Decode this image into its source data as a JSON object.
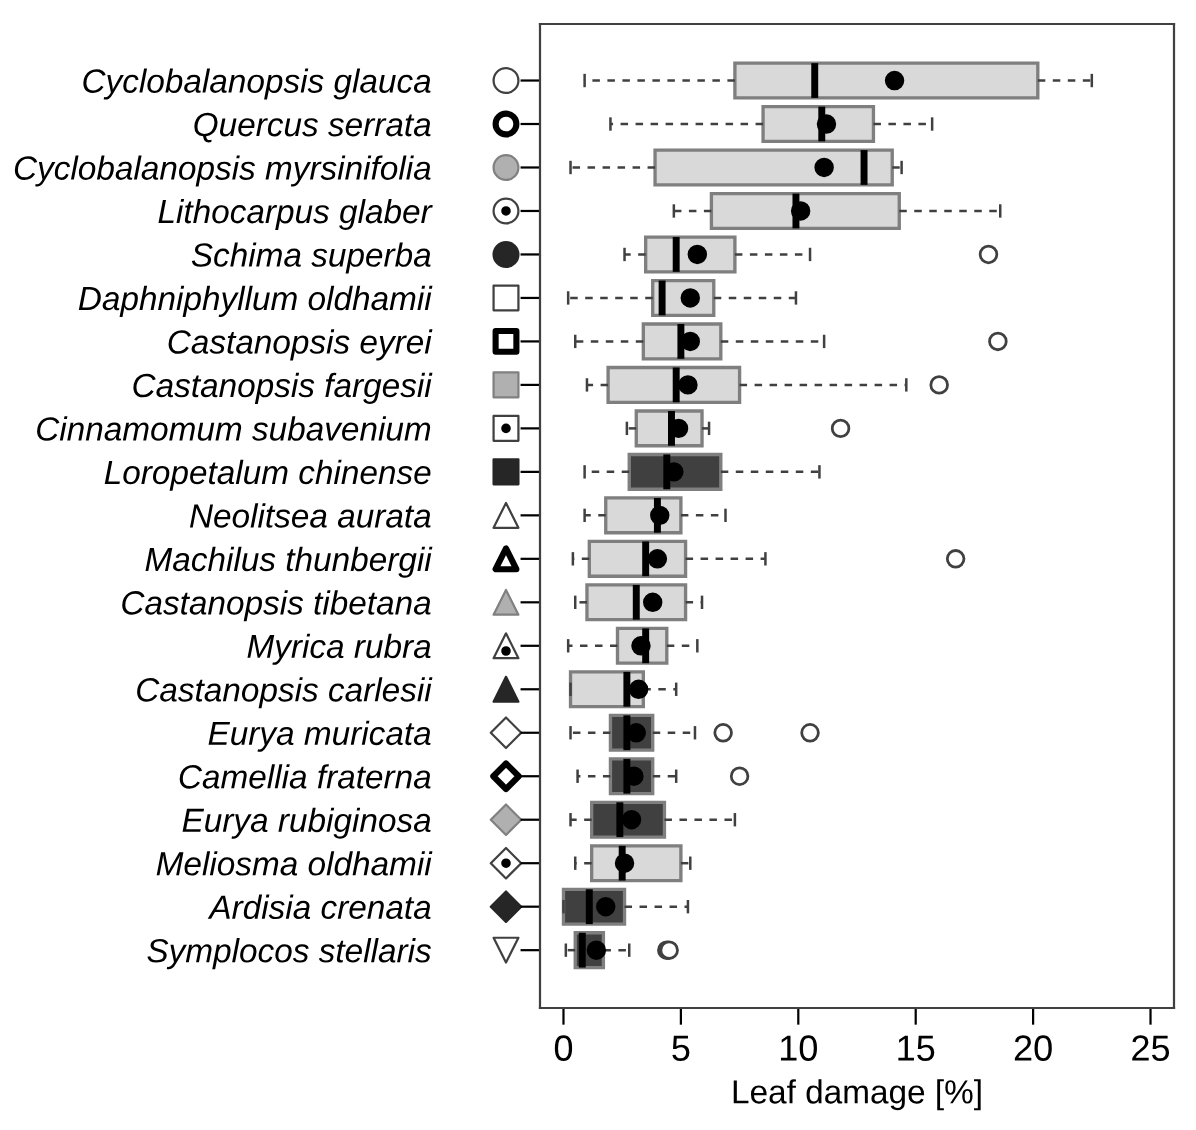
{
  "chart_data": {
    "type": "box",
    "orientation": "horizontal",
    "xlabel": "Leaf damage [%]",
    "categories": [
      "Cyclobalanopsis glauca",
      "Quercus serrata",
      "Cyclobalanopsis myrsinifolia",
      "Lithocarpus glaber",
      "Schima superba",
      "Daphniphyllum oldhamii",
      "Castanopsis eyrei",
      "Castanopsis fargesii",
      "Cinnamomum subavenium",
      "Loropetalum chinense",
      "Neolitsea aurata",
      "Machilus thunbergii",
      "Castanopsis tibetana",
      "Myrica rubra",
      "Castanopsis carlesii",
      "Eurya muricata",
      "Camellia fraterna",
      "Eurya rubiginosa",
      "Meliosma oldhamii",
      "Ardisia crenata",
      "Symplocos stellaris"
    ],
    "boxes": [
      {
        "low": 0.9,
        "q1": 7.3,
        "median": 10.7,
        "q3": 20.2,
        "high": 22.5,
        "mean": 14.1
      },
      {
        "low": 2.0,
        "q1": 8.5,
        "median": 11.0,
        "q3": 13.2,
        "high": 15.7,
        "mean": 11.2
      },
      {
        "low": 0.3,
        "q1": 3.9,
        "median": 12.8,
        "q3": 14.0,
        "high": 14.4,
        "mean": 11.1
      },
      {
        "low": 4.7,
        "q1": 6.3,
        "median": 9.9,
        "q3": 14.3,
        "high": 18.6,
        "mean": 10.1
      },
      {
        "low": 2.6,
        "q1": 3.5,
        "median": 4.8,
        "q3": 7.3,
        "high": 10.5,
        "mean": 5.7,
        "outliers": [
          18.1
        ]
      },
      {
        "low": 0.2,
        "q1": 3.8,
        "median": 4.2,
        "q3": 6.4,
        "high": 9.9,
        "mean": 5.4
      },
      {
        "low": 0.5,
        "q1": 3.4,
        "median": 5.0,
        "q3": 6.7,
        "high": 11.1,
        "mean": 5.4,
        "outliers": [
          18.5
        ]
      },
      {
        "low": 1.0,
        "q1": 1.9,
        "median": 4.8,
        "q3": 7.5,
        "high": 14.6,
        "mean": 5.3,
        "outliers": [
          16.0
        ]
      },
      {
        "low": 2.7,
        "q1": 3.1,
        "median": 4.6,
        "q3": 5.9,
        "high": 6.2,
        "mean": 4.9,
        "outliers": [
          11.8
        ]
      },
      {
        "low": 0.9,
        "q1": 2.8,
        "median": 4.4,
        "q3": 6.7,
        "high": 10.9,
        "mean": 4.7
      },
      {
        "low": 0.9,
        "q1": 1.8,
        "median": 4.0,
        "q3": 5.0,
        "high": 6.9,
        "mean": 4.1
      },
      {
        "low": 0.4,
        "q1": 1.1,
        "median": 3.5,
        "q3": 5.2,
        "high": 8.6,
        "mean": 4.0,
        "outliers": [
          16.7
        ]
      },
      {
        "low": 0.5,
        "q1": 1.0,
        "median": 3.1,
        "q3": 5.2,
        "high": 5.9,
        "mean": 3.8
      },
      {
        "low": 0.2,
        "q1": 2.3,
        "median": 3.5,
        "q3": 4.4,
        "high": 5.7,
        "mean": 3.3
      },
      {
        "low": 0.3,
        "q1": 0.3,
        "median": 2.7,
        "q3": 3.4,
        "high": 4.8,
        "mean": 3.2
      },
      {
        "low": 0.3,
        "q1": 2.0,
        "median": 2.7,
        "q3": 3.8,
        "high": 5.6,
        "mean": 3.1,
        "outliers": [
          6.8,
          10.5
        ]
      },
      {
        "low": 0.6,
        "q1": 2.0,
        "median": 2.7,
        "q3": 3.8,
        "high": 4.8,
        "mean": 3.0,
        "outliers": [
          7.5
        ]
      },
      {
        "low": 0.3,
        "q1": 1.2,
        "median": 2.4,
        "q3": 4.3,
        "high": 7.3,
        "mean": 2.9
      },
      {
        "low": 0.5,
        "q1": 1.2,
        "median": 2.5,
        "q3": 5.0,
        "high": 5.4,
        "mean": 2.6
      },
      {
        "low": 0.0,
        "q1": 0.0,
        "median": 1.1,
        "q3": 2.6,
        "high": 5.3,
        "mean": 1.8
      },
      {
        "low": 0.1,
        "q1": 0.5,
        "median": 0.8,
        "q3": 1.7,
        "high": 2.8,
        "mean": 1.4,
        "outliers": [
          4.4,
          4.5
        ]
      }
    ],
    "colors": [
      "#d9d9d9",
      "#d9d9d9",
      "#d9d9d9",
      "#d9d9d9",
      "#d9d9d9",
      "#d9d9d9",
      "#d9d9d9",
      "#d9d9d9",
      "#d9d9d9",
      "#404040",
      "#d9d9d9",
      "#d9d9d9",
      "#d9d9d9",
      "#d9d9d9",
      "#d9d9d9",
      "#404040",
      "#404040",
      "#404040",
      "#d9d9d9",
      "#404040",
      "#404040"
    ],
    "xlim": [
      -1,
      26
    ],
    "xticks": [
      0,
      5,
      10,
      15,
      20,
      25
    ],
    "grid": false
  }
}
